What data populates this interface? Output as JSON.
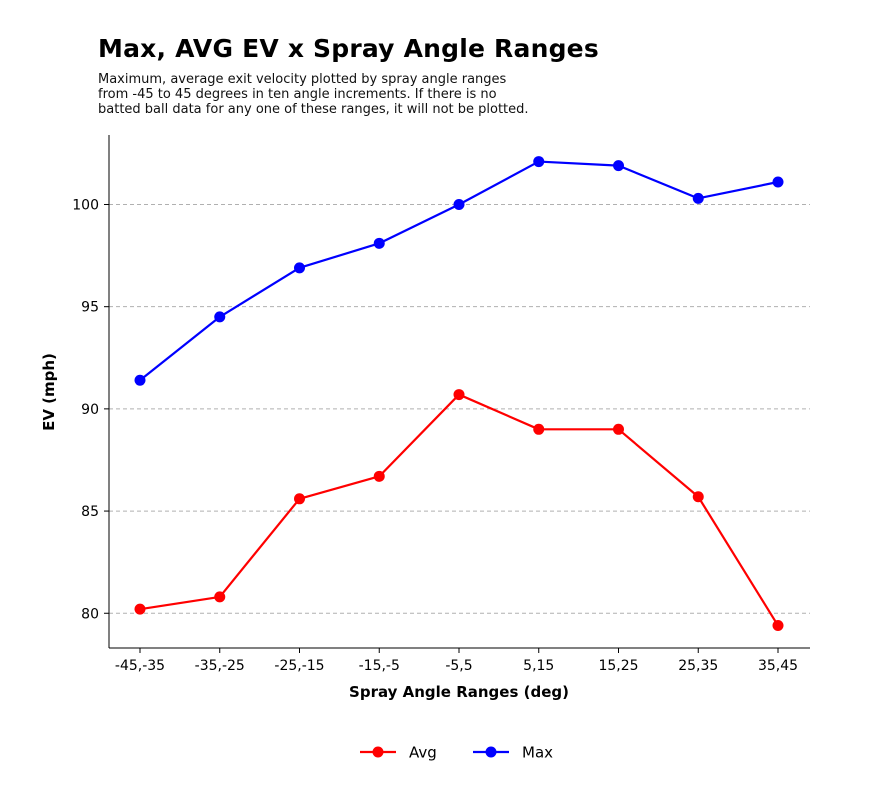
{
  "header": {
    "title": "Max, AVG EV x Spray Angle Ranges",
    "subtitle_lines": [
      "Maximum, average exit velocity plotted by spray angle ranges",
      "from -45 to 45 degrees in ten angle increments. If there is no",
      "batted ball data for any one of these ranges, it will not be plotted."
    ]
  },
  "chart_data": {
    "type": "line",
    "title": "Max, AVG EV x Spray Angle Ranges",
    "xlabel": "Spray Angle Ranges (deg)",
    "ylabel": "EV (mph)",
    "categories": [
      "-45,-35",
      "-35,-25",
      "-25,-15",
      "-15,-5",
      "-5,5",
      "5,15",
      "15,25",
      "25,35",
      "35,45"
    ],
    "ylim": [
      78.3,
      103.4
    ],
    "yticks": [
      80,
      85,
      90,
      95,
      100
    ],
    "grid": "horizontal dashed",
    "legend_position": "bottom-center",
    "series": [
      {
        "name": "Avg",
        "color": "#ff0000",
        "values": [
          80.2,
          80.8,
          85.6,
          86.7,
          90.7,
          89.0,
          89.0,
          85.7,
          79.4
        ]
      },
      {
        "name": "Max",
        "color": "#0000ff",
        "values": [
          91.4,
          94.5,
          96.9,
          98.1,
          100.0,
          102.1,
          101.9,
          100.3,
          101.1
        ]
      }
    ]
  }
}
